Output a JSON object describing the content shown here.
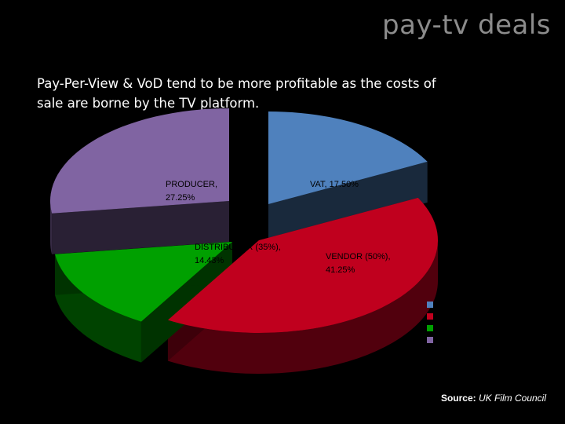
{
  "slide": {
    "title": "pay-tv deals",
    "subtitle": "Pay-Per-View & VoD tend to be more profitable as the costs of sale are borne by the TV platform."
  },
  "source": {
    "label": "Source:",
    "text": "UK Film Council"
  },
  "colors": {
    "background": "#000000",
    "vat": "#4f81bd",
    "vendor": "#c0001e",
    "distributor": "#00a000",
    "producer": "#8064a2"
  },
  "chart_data": {
    "type": "pie",
    "title": "",
    "exploded": true,
    "three_d": true,
    "legend_position": "right",
    "slices": [
      {
        "name": "VAT",
        "value": 17.5,
        "label": "VAT, 17.50%",
        "color": "#4f81bd"
      },
      {
        "name": "VENDOR (50%)",
        "value": 41.25,
        "label": "VENDOR (50%), 41.25%",
        "color": "#c0001e"
      },
      {
        "name": "DISTRIBUTOR (35%)",
        "value": 14.43,
        "label": "DISTRIBUTOR (35%), 14.43%",
        "color": "#00a000"
      },
      {
        "name": "PRODUCER",
        "value": 27.25,
        "label": "PRODUCER, 27.25%",
        "color": "#8064a2"
      }
    ]
  }
}
